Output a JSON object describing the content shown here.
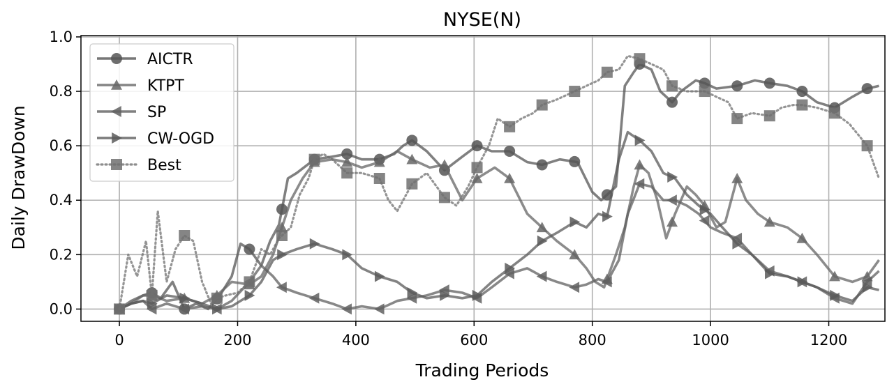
{
  "chart_data": {
    "type": "line",
    "title": "NYSE(N)",
    "xlabel": "Trading Periods",
    "ylabel": "Daily DrawDown",
    "xlim": [
      -65,
      1295
    ],
    "ylim": [
      -0.045,
      1.005
    ],
    "xticks": [
      0,
      200,
      400,
      600,
      800,
      1000,
      1200
    ],
    "yticks": [
      0.0,
      0.2,
      0.4,
      0.6,
      0.8,
      1.0
    ],
    "xtick_labels": [
      "0",
      "200",
      "400",
      "600",
      "800",
      "1000",
      "1200"
    ],
    "ytick_labels": [
      "0.0",
      "0.2",
      "0.4",
      "0.6",
      "0.8",
      "1.0"
    ],
    "grid": true,
    "legend_position": "top-left",
    "series": [
      {
        "name": "AICTR",
        "marker": "circle",
        "style": "solid",
        "color": "#555555",
        "x": [
          0,
          20,
          40,
          55,
          70,
          90,
          110,
          130,
          150,
          170,
          190,
          205,
          220,
          240,
          255,
          270,
          285,
          300,
          330,
          360,
          385,
          410,
          440,
          465,
          480,
          495,
          520,
          550,
          580,
          605,
          630,
          660,
          690,
          715,
          745,
          775,
          800,
          815,
          825,
          840,
          855,
          870,
          880,
          900,
          915,
          935,
          950,
          975,
          990,
          1010,
          1045,
          1075,
          1100,
          1130,
          1155,
          1180,
          1210,
          1240,
          1265,
          1285
        ],
        "y": [
          0.0,
          0.03,
          0.05,
          0.06,
          0.04,
          0.1,
          0.0,
          0.02,
          0.0,
          0.05,
          0.12,
          0.24,
          0.22,
          0.16,
          0.25,
          0.31,
          0.48,
          0.5,
          0.55,
          0.56,
          0.57,
          0.55,
          0.55,
          0.57,
          0.6,
          0.62,
          0.58,
          0.51,
          0.56,
          0.6,
          0.58,
          0.58,
          0.54,
          0.53,
          0.55,
          0.54,
          0.43,
          0.4,
          0.42,
          0.45,
          0.82,
          0.87,
          0.9,
          0.88,
          0.8,
          0.76,
          0.8,
          0.84,
          0.83,
          0.81,
          0.82,
          0.84,
          0.83,
          0.82,
          0.8,
          0.76,
          0.74,
          0.78,
          0.81,
          0.82
        ],
        "marker_x": [
          0,
          55,
          110,
          165,
          220,
          275,
          330,
          385,
          440,
          495,
          550,
          605,
          660,
          715,
          770,
          825,
          880,
          935,
          990,
          1045,
          1100,
          1155,
          1210,
          1265
        ]
      },
      {
        "name": "KTPT",
        "marker": "triangle-up",
        "style": "solid",
        "color": "#666666",
        "x": [
          0,
          20,
          40,
          55,
          80,
          110,
          140,
          165,
          190,
          220,
          240,
          260,
          275,
          290,
          310,
          330,
          360,
          385,
          410,
          440,
          470,
          495,
          525,
          550,
          580,
          605,
          635,
          660,
          690,
          715,
          740,
          770,
          790,
          805,
          820,
          840,
          855,
          870,
          880,
          895,
          910,
          925,
          940,
          960,
          975,
          990,
          1010,
          1025,
          1045,
          1060,
          1080,
          1100,
          1130,
          1155,
          1180,
          1210,
          1240,
          1265,
          1285
        ],
        "y": [
          0.0,
          0.02,
          0.05,
          0.05,
          0.03,
          0.04,
          0.02,
          0.05,
          0.1,
          0.09,
          0.12,
          0.2,
          0.3,
          0.4,
          0.48,
          0.54,
          0.55,
          0.54,
          0.52,
          0.54,
          0.58,
          0.55,
          0.52,
          0.53,
          0.4,
          0.48,
          0.52,
          0.48,
          0.35,
          0.3,
          0.25,
          0.2,
          0.15,
          0.1,
          0.08,
          0.2,
          0.3,
          0.45,
          0.53,
          0.5,
          0.4,
          0.26,
          0.35,
          0.45,
          0.42,
          0.38,
          0.3,
          0.32,
          0.48,
          0.4,
          0.35,
          0.32,
          0.3,
          0.26,
          0.2,
          0.12,
          0.1,
          0.12,
          0.18
        ],
        "marker_x": [
          0,
          55,
          110,
          165,
          220,
          275,
          330,
          385,
          440,
          495,
          550,
          605,
          660,
          715,
          770,
          825,
          880,
          935,
          990,
          1045,
          1100,
          1155,
          1210,
          1265
        ]
      },
      {
        "name": "SP",
        "marker": "triangle-left",
        "style": "solid",
        "color": "#606060",
        "x": [
          0,
          20,
          40,
          55,
          80,
          110,
          140,
          165,
          190,
          220,
          240,
          260,
          275,
          300,
          330,
          360,
          385,
          410,
          440,
          470,
          495,
          520,
          550,
          580,
          605,
          630,
          660,
          690,
          715,
          740,
          770,
          790,
          810,
          825,
          845,
          860,
          880,
          900,
          920,
          940,
          960,
          980,
          1000,
          1020,
          1045,
          1070,
          1100,
          1130,
          1155,
          1180,
          1210,
          1240,
          1265,
          1285
        ],
        "y": [
          0.0,
          0.02,
          0.03,
          0.0,
          0.02,
          0.0,
          0.01,
          0.0,
          0.03,
          0.1,
          0.16,
          0.12,
          0.08,
          0.06,
          0.04,
          0.02,
          0.0,
          0.01,
          0.0,
          0.03,
          0.04,
          0.05,
          0.07,
          0.06,
          0.04,
          0.08,
          0.13,
          0.15,
          0.12,
          0.1,
          0.08,
          0.09,
          0.11,
          0.1,
          0.18,
          0.35,
          0.46,
          0.45,
          0.4,
          0.4,
          0.38,
          0.35,
          0.3,
          0.28,
          0.26,
          0.2,
          0.14,
          0.12,
          0.1,
          0.08,
          0.04,
          0.02,
          0.1,
          0.14
        ],
        "marker_x": [
          0,
          55,
          110,
          165,
          220,
          275,
          330,
          385,
          440,
          495,
          550,
          605,
          660,
          715,
          770,
          825,
          880,
          935,
          990,
          1045,
          1100,
          1155,
          1210,
          1265
        ]
      },
      {
        "name": "CW-OGD",
        "marker": "triangle-right",
        "style": "solid",
        "color": "#5a5a5a",
        "x": [
          0,
          20,
          40,
          55,
          80,
          110,
          140,
          165,
          190,
          220,
          240,
          260,
          275,
          300,
          330,
          360,
          385,
          410,
          440,
          470,
          495,
          520,
          550,
          580,
          605,
          630,
          660,
          690,
          715,
          740,
          770,
          790,
          810,
          825,
          845,
          860,
          880,
          900,
          920,
          940,
          960,
          980,
          1000,
          1020,
          1045,
          1070,
          1100,
          1130,
          1155,
          1180,
          1210,
          1240,
          1265,
          1285
        ],
        "y": [
          0.0,
          0.02,
          0.03,
          0.02,
          0.05,
          0.04,
          0.02,
          0.0,
          0.01,
          0.05,
          0.1,
          0.18,
          0.2,
          0.22,
          0.24,
          0.22,
          0.2,
          0.15,
          0.12,
          0.1,
          0.06,
          0.04,
          0.05,
          0.04,
          0.05,
          0.1,
          0.15,
          0.2,
          0.25,
          0.28,
          0.32,
          0.3,
          0.35,
          0.34,
          0.55,
          0.65,
          0.62,
          0.58,
          0.5,
          0.48,
          0.42,
          0.38,
          0.35,
          0.3,
          0.24,
          0.2,
          0.13,
          0.12,
          0.1,
          0.08,
          0.05,
          0.03,
          0.08,
          0.07
        ],
        "marker_x": [
          0,
          55,
          110,
          165,
          220,
          275,
          330,
          385,
          440,
          495,
          550,
          605,
          660,
          715,
          770,
          825,
          880,
          935,
          990,
          1045,
          1100,
          1155,
          1210,
          1265
        ]
      },
      {
        "name": "Best",
        "marker": "square",
        "style": "dotted",
        "color": "#707070",
        "x": [
          0,
          15,
          30,
          45,
          55,
          65,
          80,
          95,
          110,
          125,
          140,
          155,
          165,
          180,
          200,
          220,
          240,
          255,
          270,
          290,
          305,
          320,
          330,
          345,
          360,
          385,
          410,
          440,
          455,
          470,
          495,
          520,
          550,
          570,
          590,
          605,
          625,
          640,
          660,
          680,
          700,
          715,
          740,
          770,
          790,
          810,
          825,
          845,
          860,
          880,
          900,
          920,
          935,
          960,
          990,
          1010,
          1030,
          1045,
          1070,
          1100,
          1120,
          1140,
          1155,
          1180,
          1210,
          1235,
          1250,
          1265,
          1285
        ],
        "y": [
          0.0,
          0.2,
          0.12,
          0.25,
          0.05,
          0.36,
          0.1,
          0.22,
          0.27,
          0.25,
          0.1,
          0.02,
          0.04,
          0.05,
          0.06,
          0.1,
          0.22,
          0.2,
          0.26,
          0.3,
          0.42,
          0.48,
          0.55,
          0.57,
          0.55,
          0.5,
          0.5,
          0.48,
          0.4,
          0.36,
          0.46,
          0.5,
          0.41,
          0.38,
          0.45,
          0.52,
          0.6,
          0.7,
          0.67,
          0.7,
          0.72,
          0.75,
          0.77,
          0.8,
          0.82,
          0.84,
          0.87,
          0.88,
          0.93,
          0.92,
          0.9,
          0.88,
          0.82,
          0.8,
          0.8,
          0.78,
          0.76,
          0.7,
          0.72,
          0.71,
          0.74,
          0.75,
          0.75,
          0.74,
          0.72,
          0.68,
          0.64,
          0.6,
          0.48
        ],
        "marker_x": [
          0,
          55,
          110,
          165,
          220,
          275,
          330,
          385,
          440,
          495,
          550,
          605,
          660,
          715,
          770,
          825,
          880,
          935,
          990,
          1045,
          1100,
          1155,
          1210,
          1265
        ]
      }
    ]
  }
}
